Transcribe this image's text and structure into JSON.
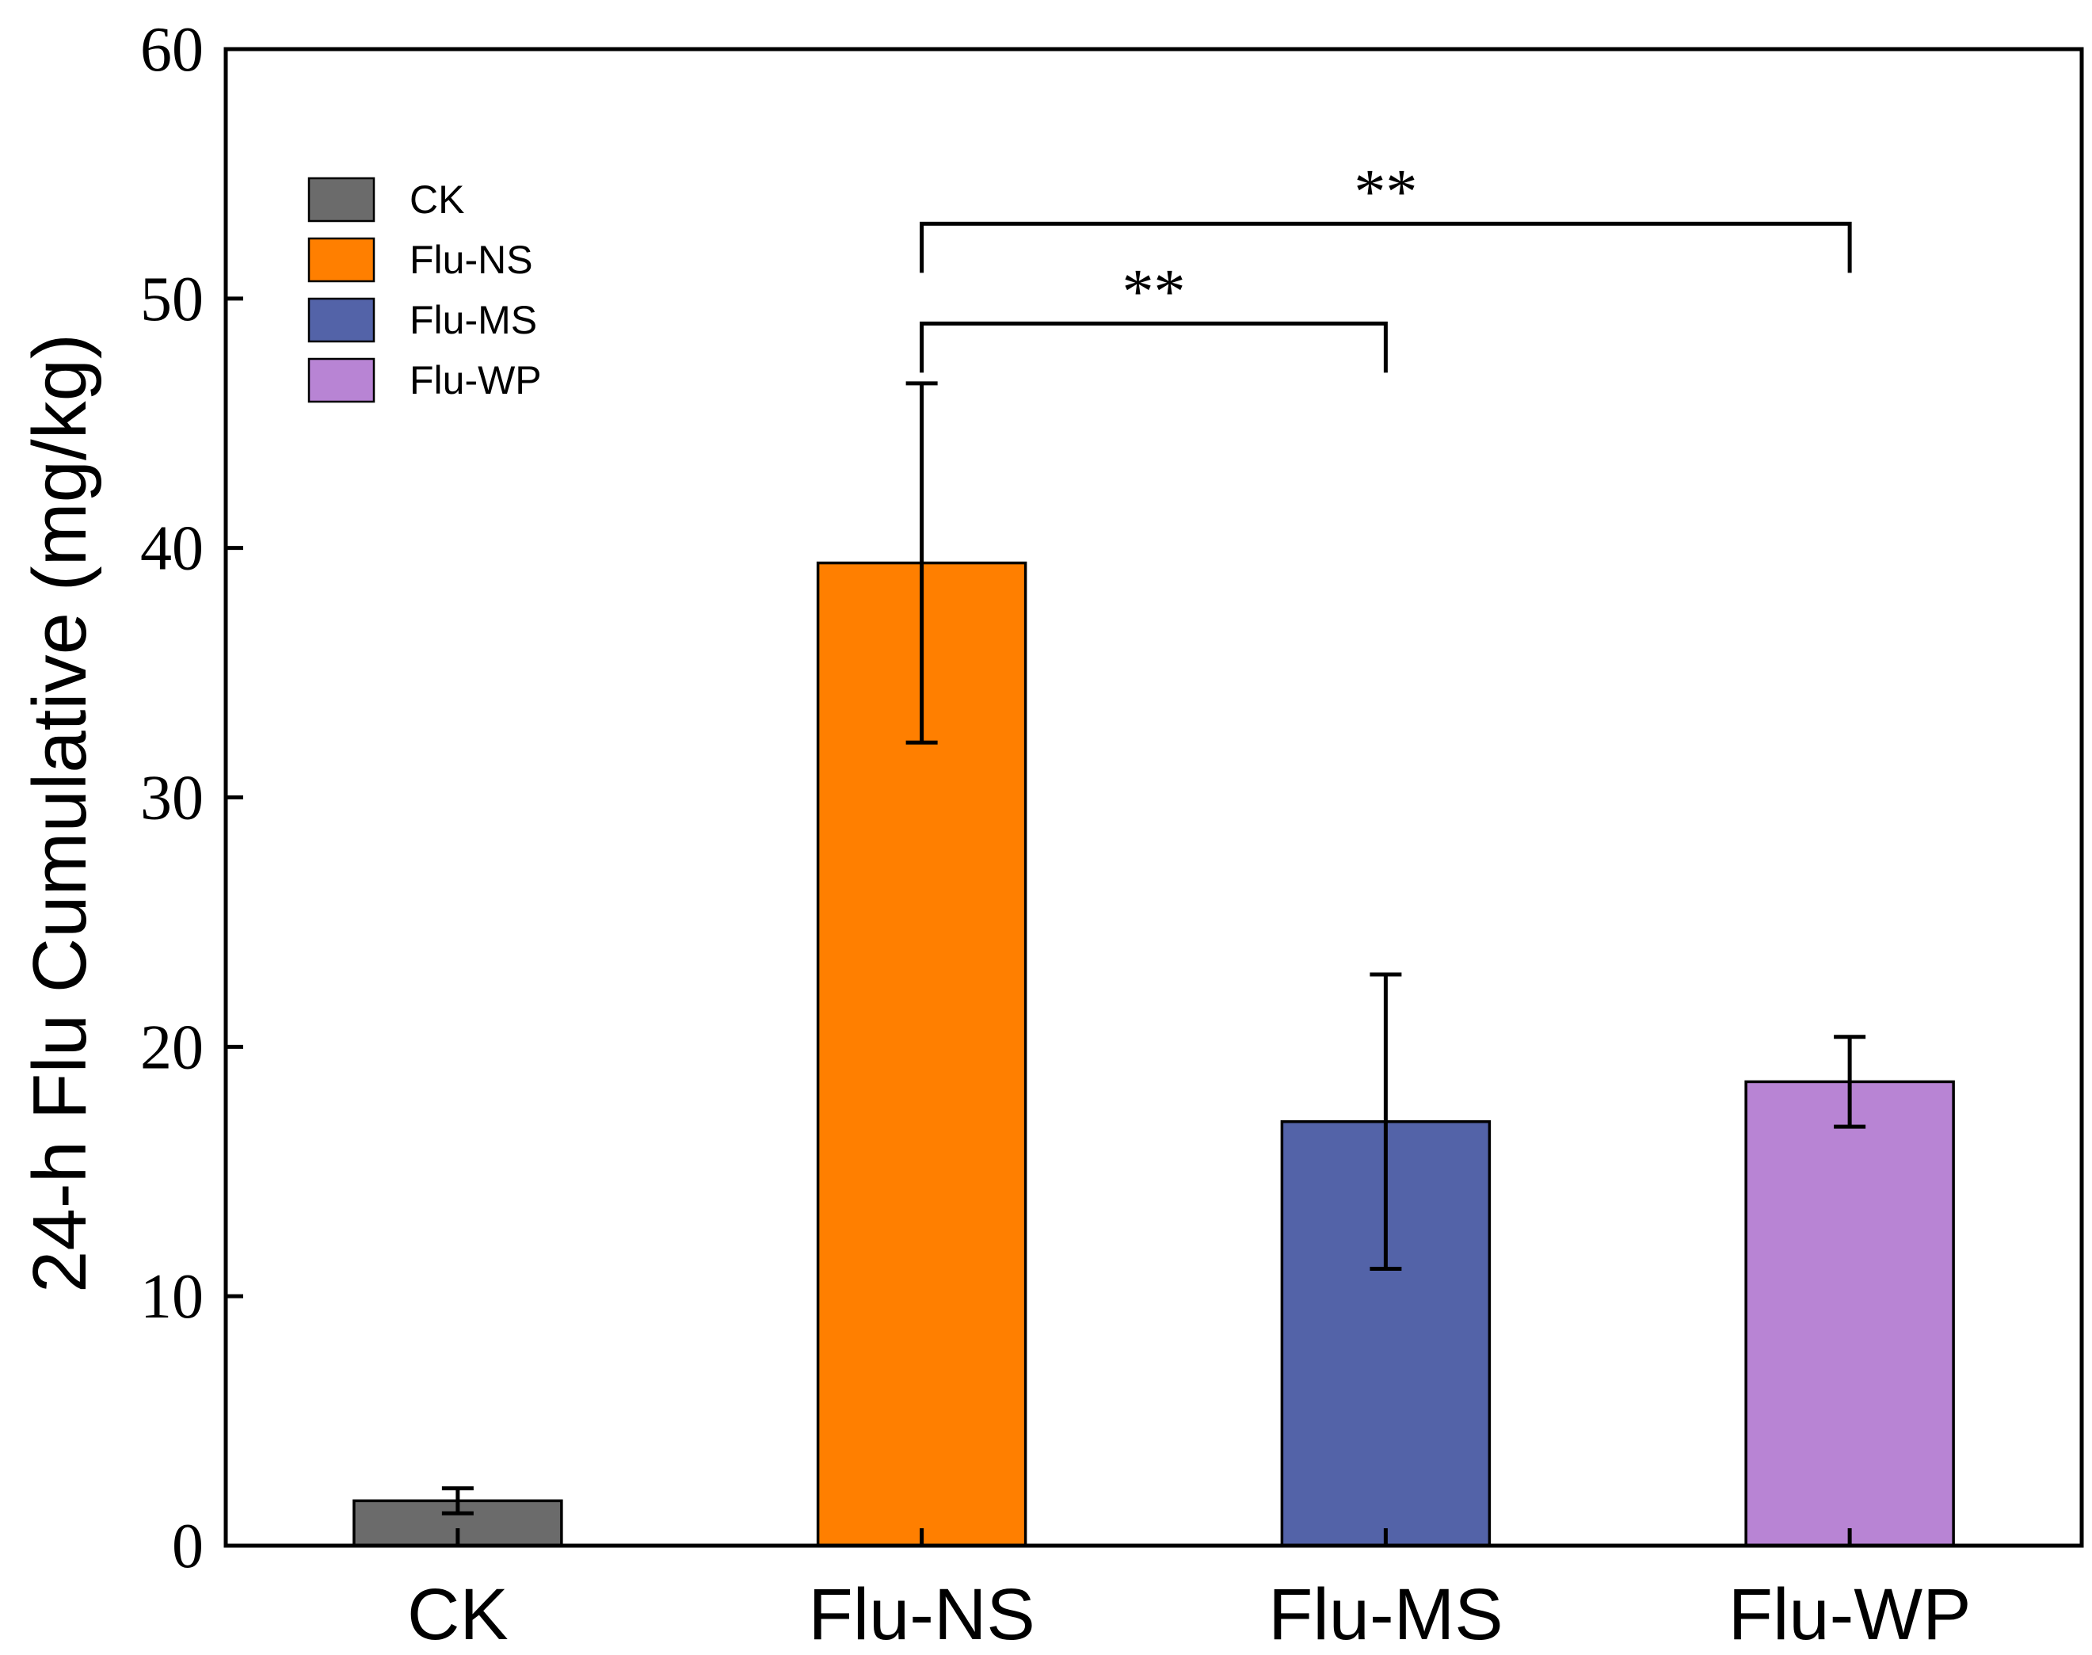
{
  "chart_data": {
    "type": "bar",
    "title": "",
    "xlabel": "",
    "ylabel": "24-h Flu Cumulative (mg/kg)",
    "ylim": [
      0,
      60
    ],
    "yticks": [
      0,
      10,
      20,
      30,
      40,
      50,
      60
    ],
    "categories": [
      "CK",
      "Flu-NS",
      "Flu-MS",
      "Flu-WP"
    ],
    "values": [
      1.8,
      39.4,
      17.0,
      18.6
    ],
    "errors": [
      0.5,
      7.2,
      5.9,
      1.8
    ],
    "colors": [
      "#6b6b6b",
      "#ff7f00",
      "#5363a8",
      "#b884d4"
    ],
    "legend": {
      "position": "top-left",
      "entries": [
        "CK",
        "Flu-NS",
        "Flu-MS",
        "Flu-WP"
      ]
    },
    "significance": [
      {
        "from": "Flu-NS",
        "to": "Flu-MS",
        "label": "**",
        "y": 49
      },
      {
        "from": "Flu-NS",
        "to": "Flu-WP",
        "label": "**",
        "y": 53
      }
    ]
  }
}
